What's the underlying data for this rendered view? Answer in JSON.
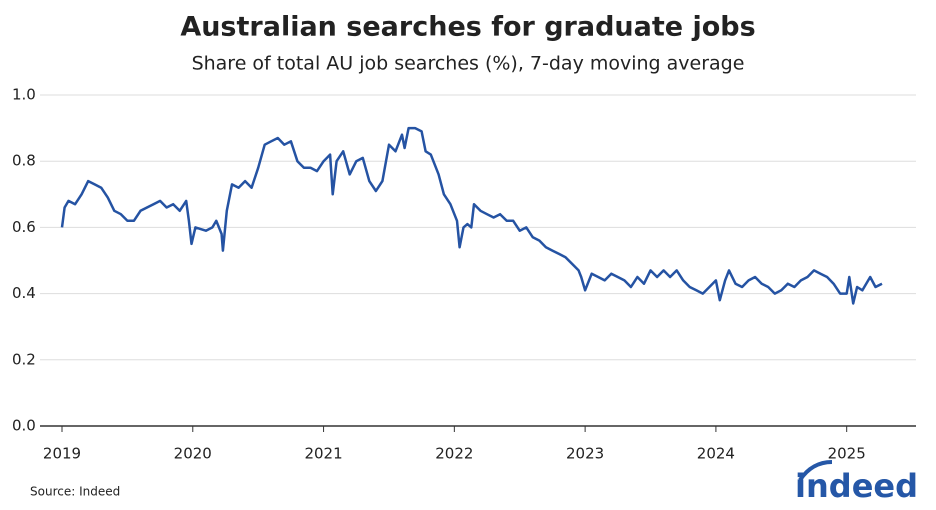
{
  "chart_data": {
    "type": "line",
    "title": "Australian searches for graduate jobs",
    "subtitle": "Share of total AU job searches (%), 7-day moving average",
    "source": "Source: Indeed",
    "logo": "indeed",
    "x": [
      2019.0,
      2019.02,
      2019.05,
      2019.1,
      2019.15,
      2019.2,
      2019.25,
      2019.3,
      2019.35,
      2019.4,
      2019.45,
      2019.5,
      2019.55,
      2019.6,
      2019.65,
      2019.7,
      2019.75,
      2019.8,
      2019.85,
      2019.9,
      2019.95,
      2019.97,
      2019.99,
      2020.02,
      2020.1,
      2020.15,
      2020.18,
      2020.22,
      2020.23,
      2020.26,
      2020.3,
      2020.35,
      2020.4,
      2020.45,
      2020.5,
      2020.55,
      2020.6,
      2020.65,
      2020.7,
      2020.75,
      2020.8,
      2020.85,
      2020.9,
      2020.95,
      2021.0,
      2021.05,
      2021.07,
      2021.1,
      2021.15,
      2021.2,
      2021.25,
      2021.3,
      2021.35,
      2021.4,
      2021.45,
      2021.5,
      2021.55,
      2021.6,
      2021.62,
      2021.65,
      2021.7,
      2021.75,
      2021.78,
      2021.82,
      2021.88,
      2021.92,
      2021.97,
      2022.02,
      2022.04,
      2022.07,
      2022.1,
      2022.13,
      2022.15,
      2022.2,
      2022.25,
      2022.3,
      2022.35,
      2022.4,
      2022.45,
      2022.5,
      2022.55,
      2022.6,
      2022.65,
      2022.7,
      2022.75,
      2022.8,
      2022.85,
      2022.9,
      2022.95,
      2022.97,
      2023.0,
      2023.05,
      2023.1,
      2023.15,
      2023.2,
      2023.25,
      2023.3,
      2023.35,
      2023.4,
      2023.45,
      2023.5,
      2023.55,
      2023.6,
      2023.65,
      2023.7,
      2023.75,
      2023.8,
      2023.85,
      2023.9,
      2023.95,
      2024.0,
      2024.03,
      2024.07,
      2024.1,
      2024.15,
      2024.2,
      2024.25,
      2024.3,
      2024.35,
      2024.4,
      2024.45,
      2024.5,
      2024.55,
      2024.6,
      2024.65,
      2024.7,
      2024.75,
      2024.8,
      2024.85,
      2024.9,
      2024.95,
      2025.0,
      2025.02,
      2025.05,
      2025.08,
      2025.12,
      2025.18,
      2025.22,
      2025.27
    ],
    "series": [
      {
        "color": "#2553a3",
        "values": [
          0.6,
          0.66,
          0.68,
          0.67,
          0.7,
          0.74,
          0.73,
          0.72,
          0.69,
          0.65,
          0.64,
          0.62,
          0.62,
          0.65,
          0.66,
          0.67,
          0.68,
          0.66,
          0.67,
          0.65,
          0.68,
          0.62,
          0.55,
          0.6,
          0.59,
          0.6,
          0.62,
          0.58,
          0.53,
          0.65,
          0.73,
          0.72,
          0.74,
          0.72,
          0.78,
          0.85,
          0.86,
          0.87,
          0.85,
          0.86,
          0.8,
          0.78,
          0.78,
          0.77,
          0.8,
          0.82,
          0.7,
          0.8,
          0.83,
          0.76,
          0.8,
          0.81,
          0.74,
          0.71,
          0.74,
          0.85,
          0.83,
          0.88,
          0.84,
          0.9,
          0.9,
          0.89,
          0.83,
          0.82,
          0.76,
          0.7,
          0.67,
          0.62,
          0.54,
          0.6,
          0.61,
          0.6,
          0.67,
          0.65,
          0.64,
          0.63,
          0.64,
          0.62,
          0.62,
          0.59,
          0.6,
          0.57,
          0.56,
          0.54,
          0.53,
          0.52,
          0.51,
          0.49,
          0.47,
          0.45,
          0.41,
          0.46,
          0.45,
          0.44,
          0.46,
          0.45,
          0.44,
          0.42,
          0.45,
          0.43,
          0.47,
          0.45,
          0.47,
          0.45,
          0.47,
          0.44,
          0.42,
          0.41,
          0.4,
          0.42,
          0.44,
          0.38,
          0.44,
          0.47,
          0.43,
          0.42,
          0.44,
          0.45,
          0.43,
          0.42,
          0.4,
          0.41,
          0.43,
          0.42,
          0.44,
          0.45,
          0.47,
          0.46,
          0.45,
          0.43,
          0.4,
          0.4,
          0.45,
          0.37,
          0.42,
          0.41,
          0.45,
          0.42,
          0.43
        ]
      }
    ],
    "xlim": [
      2019,
      2025.53
    ],
    "xticks": [
      2019,
      2020,
      2021,
      2022,
      2023,
      2024,
      2025
    ],
    "ylim": [
      0,
      1
    ],
    "yticks": [
      {
        "value": 0,
        "label": "0.0"
      },
      0.2,
      0.4,
      0.6,
      0.8,
      {
        "value": 1,
        "label": "1.0"
      }
    ],
    "grid": true
  }
}
